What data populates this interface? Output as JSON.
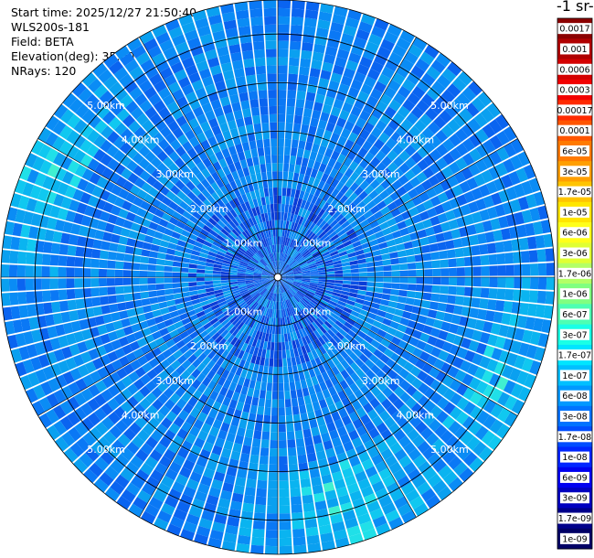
{
  "info": {
    "start_time": "Start time: 2025/12/27 21:50:40",
    "instrument": "WLS200s-181",
    "field": "Field: BETA",
    "elevation": "Elevation(deg): 35.00",
    "nrays": "NRays: 120"
  },
  "colorbar": {
    "title_fragment": "-1 sr-",
    "colors": [
      "#8b0000",
      "#b00000",
      "#d40000",
      "#f20000",
      "#ff2a00",
      "#ff5500",
      "#ff7a00",
      "#ff9f00",
      "#ffc400",
      "#ffe600",
      "#ffff1a",
      "#e0ff33",
      "#b3ff66",
      "#80ff80",
      "#4dffb3",
      "#1affe6",
      "#00e5ff",
      "#00bfff",
      "#0099ff",
      "#0073ff",
      "#004dff",
      "#0026ff",
      "#0000f0",
      "#0000c0",
      "#00008b",
      "#000066"
    ]
  },
  "chart_data": {
    "type": "heatmap",
    "projection": "polar (PPI)",
    "field": "BETA",
    "elevation_deg": 35.0,
    "n_rays": 120,
    "range_rings_km": [
      1.0,
      2.0,
      3.0,
      4.0,
      5.0
    ],
    "range_ring_labels": [
      "1.00km",
      "2.00km",
      "3.00km",
      "4.00km",
      "5.00km"
    ],
    "colorbar_tick_labels": [
      "0.0017",
      "0.001",
      "0.0006",
      "0.0003",
      "0.00017",
      "0.0001",
      "6e-05",
      "3e-05",
      "1.7e-05",
      "1e-05",
      "6e-06",
      "3e-06",
      "1.7e-06",
      "1e-06",
      "6e-07",
      "3e-07",
      "1.7e-07",
      "1e-07",
      "6e-08",
      "3e-08",
      "1.7e-08",
      "1e-08",
      "6e-09",
      "3e-09",
      "1.7e-09",
      "1e-09"
    ],
    "dominant_value_range": [
      "3e-08",
      "1.7e-07"
    ],
    "higher_value_regions": [
      {
        "sector": "south-southeast",
        "range_km": [
          4.0,
          6.0
        ],
        "approx_value": "3e-07"
      },
      {
        "sector": "east-southeast",
        "range_km": [
          4.5,
          6.0
        ],
        "approx_value": "3e-07"
      },
      {
        "sector": "west-northwest",
        "range_km": [
          4.5,
          6.0
        ],
        "approx_value": "3e-07"
      }
    ]
  }
}
